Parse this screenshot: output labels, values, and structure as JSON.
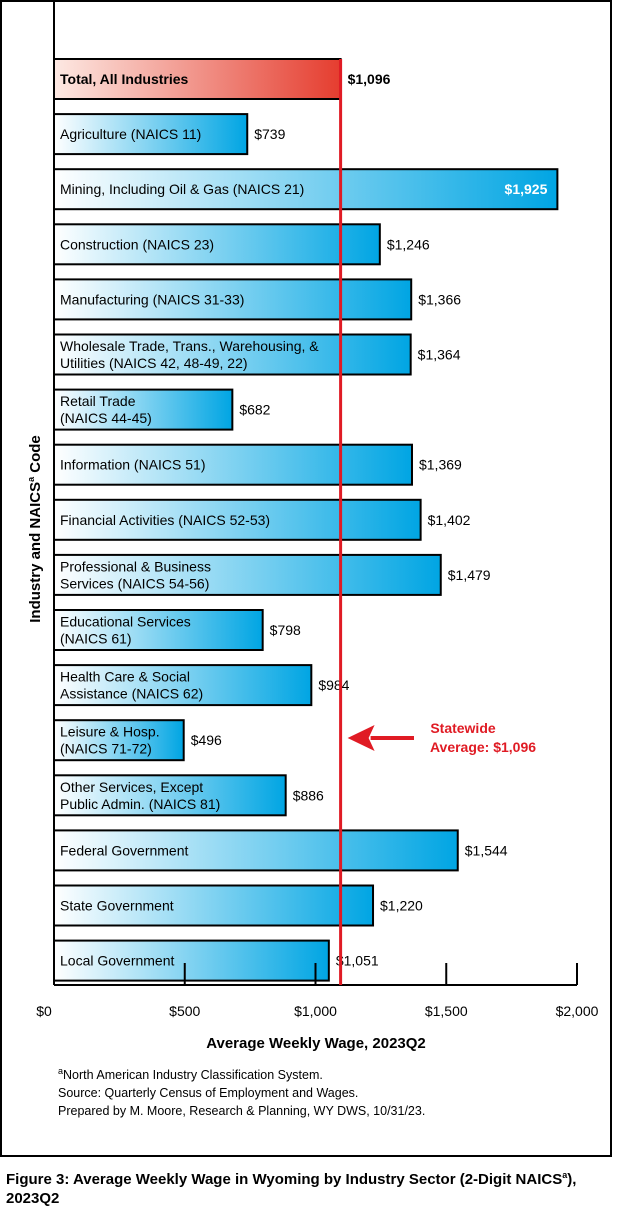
{
  "chart_data": {
    "type": "bar",
    "orientation": "horizontal",
    "categories": [
      "Total, All Industries",
      "Agriculture (NAICS 11)",
      "Mining, Including Oil & Gas (NAICS 21)",
      "Construction (NAICS 23)",
      "Manufacturing (NAICS 31-33)",
      "Wholesale Trade, Trans., Warehousing, &\nUtilities (NAICS 42, 48-49, 22)",
      "Retail Trade\n(NAICS 44-45)",
      "Information (NAICS 51)",
      "Financial Activities (NAICS 52-53)",
      "Professional & Business\nServices (NAICS 54-56)",
      "Educational Services\n(NAICS 61)",
      "Health Care & Social\nAssistance (NAICS 62)",
      "Leisure & Hosp.\n(NAICS 71-72)",
      "Other Services, Except\nPublic Admin. (NAICS 81)",
      "Federal Government",
      "State Government",
      "Local Government"
    ],
    "values": [
      1096,
      739,
      1925,
      1246,
      1366,
      1364,
      682,
      1369,
      1402,
      1479,
      798,
      984,
      496,
      886,
      1544,
      1220,
      1051
    ],
    "value_labels": [
      "$1,096",
      "$739",
      "$1,925",
      "$1,246",
      "$1,366",
      "$1,364",
      "$682",
      "$1,369",
      "$1,402",
      "$1,479",
      "$798",
      "$984",
      "$496",
      "$886",
      "$1,544",
      "$1,220",
      "$1,051"
    ],
    "xlabel": "Average Weekly Wage, 2023Q2",
    "ylabel_main": "Industry and NAICS",
    "ylabel_sup": "a",
    "ylabel_tail": " Code",
    "xlim": [
      0,
      2000
    ],
    "xticks": [
      0,
      500,
      1000,
      1500,
      2000
    ],
    "xtick_labels": [
      "$0",
      "$500",
      "$1,000",
      "$1,500",
      "$2,000"
    ],
    "reference_line": {
      "value": 1096,
      "annotation_line1": "Statewide",
      "annotation_line2": "Average: $1,096"
    },
    "grid": false,
    "legend": "none",
    "highlight_category": "Total, All Industries"
  },
  "colors": {
    "total_bar_start": "#fde9e3",
    "total_bar_end": "#e53d2f",
    "bar_start": "#ffffff",
    "bar_end": "#00a5e3",
    "reference_line": "#e01b24",
    "annotation": "#e01b24",
    "inside_value_label": "#ffffff"
  },
  "footnotes": {
    "line1_sup": "a",
    "line1_text": "North American Industry Classification System.",
    "line2": "Source: Quarterly Census of Employment and Wages.",
    "line3": "Prepared by M. Moore, Research & Planning, WY DWS, 10/31/23."
  },
  "caption": {
    "part1": "Figure 3: Average Weekly Wage in Wyoming by Industry Sector (2-Digit NAICS",
    "sup": "a",
    "part2": "), 2023Q2"
  }
}
